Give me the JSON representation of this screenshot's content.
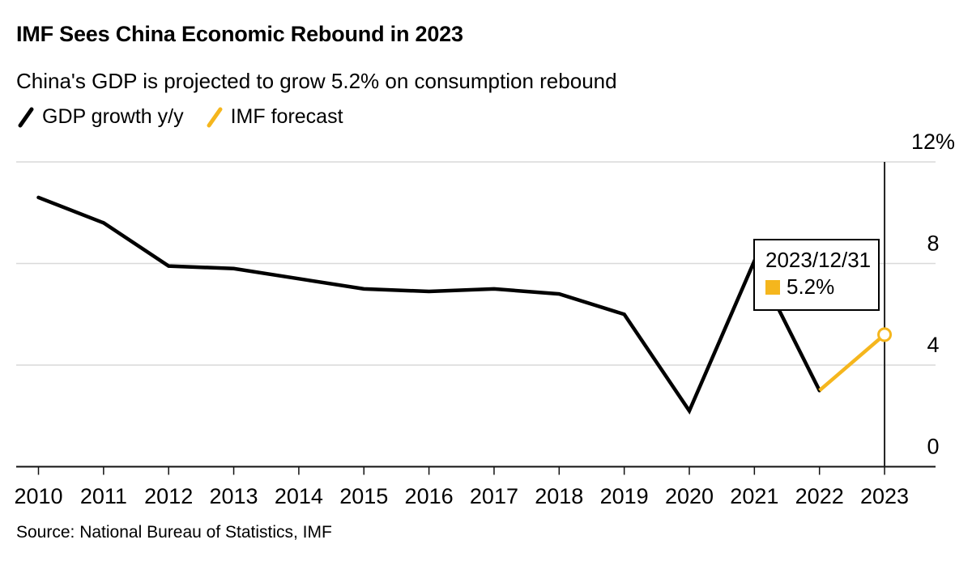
{
  "header": {
    "title": "IMF Sees China Economic Rebound in 2023",
    "subtitle": "China's GDP is projected to grow 5.2% on consumption rebound"
  },
  "legend": {
    "items": [
      {
        "label": "GDP growth y/y",
        "color": "#000000"
      },
      {
        "label": "IMF forecast",
        "color": "#F5B61D"
      }
    ]
  },
  "tooltip": {
    "date": "2023/12/31",
    "value": "5.2%",
    "swatch_color": "#F5B61D"
  },
  "footer": {
    "source": "Source: National Bureau of Statistics, IMF"
  },
  "colors": {
    "series_actual": "#000000",
    "series_forecast": "#F5B61D",
    "gridline": "#d9d9d9",
    "axis": "#111111",
    "highlight_line": "#222222",
    "background": "#ffffff",
    "text": "#000000"
  },
  "chart_data": {
    "type": "line",
    "title": "IMF Sees China Economic Rebound in 2023",
    "subtitle": "China's GDP is projected to grow 5.2% on consumption rebound",
    "x": [
      2010,
      2011,
      2012,
      2013,
      2014,
      2015,
      2016,
      2017,
      2018,
      2019,
      2020,
      2021,
      2022,
      2023
    ],
    "xtick_labels": [
      "2010",
      "2011",
      "2012",
      "2013",
      "2014",
      "2015",
      "2016",
      "2017",
      "2018",
      "2019",
      "2020",
      "2021",
      "2022",
      "2023"
    ],
    "series": [
      {
        "name": "GDP growth y/y",
        "color": "#000000",
        "x": [
          2010,
          2011,
          2012,
          2013,
          2014,
          2015,
          2016,
          2017,
          2018,
          2019,
          2020,
          2021,
          2022
        ],
        "values": [
          10.6,
          9.6,
          7.9,
          7.8,
          7.4,
          7.0,
          6.9,
          7.0,
          6.8,
          6.0,
          2.2,
          8.1,
          3.0
        ],
        "linecap": "round",
        "endpoint_marker": "none"
      },
      {
        "name": "IMF forecast",
        "color": "#F5B61D",
        "x": [
          2022,
          2023
        ],
        "values": [
          3.0,
          5.2
        ],
        "linecap": "butt",
        "endpoint_marker": "open-circle"
      }
    ],
    "ylabel": "",
    "xlabel": "",
    "ylim": [
      0,
      12
    ],
    "yticks": [
      0,
      4,
      8,
      12
    ],
    "ytick_labels": [
      "0",
      "4",
      "8",
      "12%"
    ],
    "ylabels_position": "right",
    "grid": "horizontal",
    "legend_position": "top-left",
    "highlight_x": 2023,
    "annotation": {
      "date": "2023/12/31",
      "value_pct": 5.2
    }
  }
}
